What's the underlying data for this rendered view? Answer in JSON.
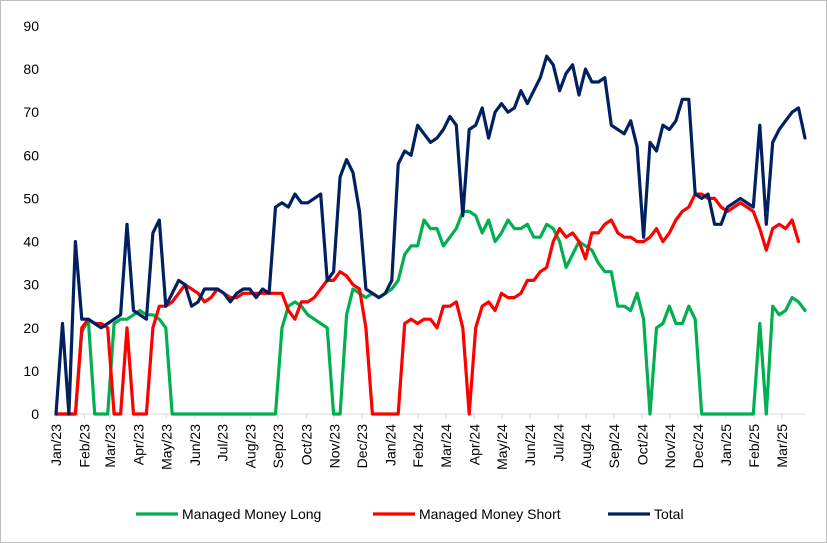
{
  "chart_data": {
    "type": "line",
    "title": "",
    "xlabel": "",
    "ylabel": "",
    "ylim": [
      0,
      90
    ],
    "yticks": [
      0,
      10,
      20,
      30,
      40,
      50,
      60,
      70,
      80,
      90
    ],
    "grid": false,
    "legend_position": "bottom",
    "x_tick_labels": [
      "Jan/23",
      "Feb/23",
      "Mar/23",
      "Apr/23",
      "May/23",
      "Jun/23",
      "Jul/23",
      "Aug/23",
      "Sep/23",
      "Oct/23",
      "Nov/23",
      "Dec/23",
      "Jan/24",
      "Feb/24",
      "Mar/24",
      "Apr/24",
      "May/24",
      "Jun/24",
      "Jul/24",
      "Aug/24",
      "Sep/24",
      "Oct/24",
      "Nov/24",
      "Dec/24",
      "Jan/25",
      "Feb/25",
      "Mar/25"
    ],
    "x_tick_index": [
      0,
      4.4,
      8.4,
      12.8,
      17.1,
      21.5,
      25.8,
      30.1,
      34.4,
      38.8,
      43.1,
      47.4,
      51.8,
      56.1,
      60.4,
      64.8,
      69.1,
      73.4,
      77.8,
      82.1,
      86.4,
      90.8,
      95.1,
      99.4,
      103.8,
      108.1,
      112.4
    ],
    "n_points": 117,
    "series": [
      {
        "name": "Managed Money Long",
        "color": "#00b050",
        "points": [
          [
            0,
            0
          ],
          [
            3,
            0
          ],
          [
            4,
            19
          ],
          [
            5,
            22
          ],
          [
            6,
            0
          ],
          [
            8,
            0
          ],
          [
            9,
            21
          ],
          [
            10,
            22
          ],
          [
            11,
            22
          ],
          [
            12,
            23
          ],
          [
            13,
            24
          ],
          [
            14,
            23
          ],
          [
            15,
            23
          ],
          [
            16,
            22
          ],
          [
            17,
            20
          ],
          [
            18,
            0
          ],
          [
            25,
            0
          ],
          [
            34,
            0
          ],
          [
            35,
            20
          ],
          [
            36,
            25
          ],
          [
            37,
            26
          ],
          [
            38,
            25
          ],
          [
            39,
            23
          ],
          [
            40,
            22
          ],
          [
            41,
            21
          ],
          [
            42,
            20
          ],
          [
            43,
            0
          ],
          [
            44,
            0
          ],
          [
            45,
            23
          ],
          [
            46,
            29
          ],
          [
            47,
            28
          ],
          [
            48,
            27
          ],
          [
            49,
            28
          ],
          [
            50,
            27
          ],
          [
            51,
            28
          ],
          [
            52,
            29
          ],
          [
            53,
            31
          ],
          [
            54,
            37
          ],
          [
            55,
            39
          ],
          [
            56,
            39
          ],
          [
            57,
            45
          ],
          [
            58,
            43
          ],
          [
            59,
            43
          ],
          [
            60,
            39
          ],
          [
            61,
            41
          ],
          [
            62,
            43
          ],
          [
            63,
            47
          ],
          [
            64,
            47
          ],
          [
            65,
            46
          ],
          [
            66,
            42
          ],
          [
            67,
            45
          ],
          [
            68,
            40
          ],
          [
            69,
            42
          ],
          [
            70,
            45
          ],
          [
            71,
            43
          ],
          [
            72,
            43
          ],
          [
            73,
            44
          ],
          [
            74,
            41
          ],
          [
            75,
            41
          ],
          [
            76,
            44
          ],
          [
            77,
            43
          ],
          [
            78,
            40
          ],
          [
            79,
            34
          ],
          [
            80,
            37
          ],
          [
            81,
            40
          ],
          [
            82,
            39
          ],
          [
            83,
            38
          ],
          [
            84,
            35
          ],
          [
            85,
            33
          ],
          [
            86,
            33
          ],
          [
            87,
            25
          ],
          [
            88,
            25
          ],
          [
            89,
            24
          ],
          [
            90,
            28
          ],
          [
            91,
            22
          ],
          [
            92,
            0
          ],
          [
            93,
            20
          ],
          [
            94,
            21
          ],
          [
            95,
            25
          ],
          [
            96,
            21
          ],
          [
            97,
            21
          ],
          [
            98,
            25
          ],
          [
            99,
            22
          ],
          [
            100,
            0
          ],
          [
            107,
            0
          ],
          [
            108,
            0
          ],
          [
            109,
            21
          ],
          [
            110,
            0
          ],
          [
            111,
            25
          ],
          [
            112,
            23
          ],
          [
            113,
            24
          ],
          [
            114,
            27
          ],
          [
            115,
            26
          ],
          [
            116,
            24
          ]
        ]
      },
      {
        "name": "Managed Money Short",
        "color": "#ff0000",
        "points": [
          [
            0,
            0
          ],
          [
            3,
            0
          ],
          [
            4,
            20
          ],
          [
            5,
            22
          ],
          [
            6,
            21
          ],
          [
            7,
            21
          ],
          [
            8,
            20
          ],
          [
            9,
            0
          ],
          [
            10,
            0
          ],
          [
            11,
            20
          ],
          [
            12,
            0
          ],
          [
            13,
            0
          ],
          [
            14,
            0
          ],
          [
            15,
            20
          ],
          [
            16,
            25
          ],
          [
            17,
            25
          ],
          [
            18,
            26
          ],
          [
            19,
            28
          ],
          [
            20,
            30
          ],
          [
            21,
            29
          ],
          [
            22,
            28
          ],
          [
            23,
            26
          ],
          [
            24,
            27
          ],
          [
            25,
            29
          ],
          [
            26,
            28
          ],
          [
            27,
            27
          ],
          [
            28,
            27
          ],
          [
            29,
            28
          ],
          [
            30,
            28
          ],
          [
            31,
            28
          ],
          [
            32,
            28
          ],
          [
            33,
            28
          ],
          [
            34,
            28
          ],
          [
            35,
            28
          ],
          [
            36,
            24
          ],
          [
            37,
            22
          ],
          [
            38,
            26
          ],
          [
            39,
            26
          ],
          [
            40,
            27
          ],
          [
            41,
            29
          ],
          [
            42,
            31
          ],
          [
            43,
            31
          ],
          [
            44,
            33
          ],
          [
            45,
            32
          ],
          [
            46,
            30
          ],
          [
            47,
            29
          ],
          [
            48,
            20
          ],
          [
            49,
            0
          ],
          [
            50,
            0
          ],
          [
            51,
            0
          ],
          [
            52,
            0
          ],
          [
            53,
            0
          ],
          [
            54,
            21
          ],
          [
            55,
            22
          ],
          [
            56,
            21
          ],
          [
            57,
            22
          ],
          [
            58,
            22
          ],
          [
            59,
            20
          ],
          [
            60,
            25
          ],
          [
            61,
            25
          ],
          [
            62,
            26
          ],
          [
            63,
            20
          ],
          [
            64,
            0
          ],
          [
            65,
            20
          ],
          [
            66,
            25
          ],
          [
            67,
            26
          ],
          [
            68,
            24
          ],
          [
            69,
            28
          ],
          [
            70,
            27
          ],
          [
            71,
            27
          ],
          [
            72,
            28
          ],
          [
            73,
            31
          ],
          [
            74,
            31
          ],
          [
            75,
            33
          ],
          [
            76,
            34
          ],
          [
            77,
            40
          ],
          [
            78,
            43
          ],
          [
            79,
            41
          ],
          [
            80,
            42
          ],
          [
            81,
            40
          ],
          [
            82,
            36
          ],
          [
            83,
            42
          ],
          [
            84,
            42
          ],
          [
            85,
            44
          ],
          [
            86,
            45
          ],
          [
            87,
            42
          ],
          [
            88,
            41
          ],
          [
            89,
            41
          ],
          [
            90,
            40
          ],
          [
            91,
            40
          ],
          [
            92,
            41
          ],
          [
            93,
            43
          ],
          [
            94,
            40
          ],
          [
            95,
            42
          ],
          [
            96,
            45
          ],
          [
            97,
            47
          ],
          [
            98,
            48
          ],
          [
            99,
            51
          ],
          [
            100,
            51
          ],
          [
            101,
            50
          ],
          [
            102,
            50
          ],
          [
            103,
            48
          ],
          [
            104,
            47
          ],
          [
            105,
            48
          ],
          [
            106,
            49
          ],
          [
            107,
            48
          ],
          [
            108,
            47
          ],
          [
            109,
            43
          ],
          [
            110,
            38
          ],
          [
            111,
            43
          ],
          [
            112,
            44
          ],
          [
            113,
            43
          ],
          [
            114,
            45
          ],
          [
            115,
            40
          ]
        ]
      },
      {
        "name": "Total",
        "color": "#002060",
        "points": [
          [
            0,
            0
          ],
          [
            1,
            21
          ],
          [
            2,
            0
          ],
          [
            3,
            40
          ],
          [
            4,
            22
          ],
          [
            5,
            22
          ],
          [
            6,
            21
          ],
          [
            7,
            20
          ],
          [
            8,
            21
          ],
          [
            9,
            22
          ],
          [
            10,
            23
          ],
          [
            11,
            44
          ],
          [
            12,
            24
          ],
          [
            13,
            23
          ],
          [
            14,
            22
          ],
          [
            15,
            42
          ],
          [
            16,
            45
          ],
          [
            17,
            25
          ],
          [
            18,
            28
          ],
          [
            19,
            31
          ],
          [
            20,
            30
          ],
          [
            21,
            25
          ],
          [
            22,
            26
          ],
          [
            23,
            29
          ],
          [
            24,
            29
          ],
          [
            25,
            29
          ],
          [
            26,
            28
          ],
          [
            27,
            26
          ],
          [
            28,
            28
          ],
          [
            29,
            29
          ],
          [
            30,
            29
          ],
          [
            31,
            27
          ],
          [
            32,
            29
          ],
          [
            33,
            28
          ],
          [
            34,
            48
          ],
          [
            35,
            49
          ],
          [
            36,
            48
          ],
          [
            37,
            51
          ],
          [
            38,
            49
          ],
          [
            39,
            49
          ],
          [
            40,
            50
          ],
          [
            41,
            51
          ],
          [
            42,
            31
          ],
          [
            43,
            33
          ],
          [
            44,
            55
          ],
          [
            45,
            59
          ],
          [
            46,
            56
          ],
          [
            47,
            47
          ],
          [
            48,
            29
          ],
          [
            49,
            28
          ],
          [
            50,
            27
          ],
          [
            51,
            28
          ],
          [
            52,
            31
          ],
          [
            53,
            58
          ],
          [
            54,
            61
          ],
          [
            55,
            60
          ],
          [
            56,
            67
          ],
          [
            57,
            65
          ],
          [
            58,
            63
          ],
          [
            59,
            64
          ],
          [
            60,
            66
          ],
          [
            61,
            69
          ],
          [
            62,
            67
          ],
          [
            63,
            46
          ],
          [
            64,
            66
          ],
          [
            65,
            67
          ],
          [
            66,
            71
          ],
          [
            67,
            64
          ],
          [
            68,
            70
          ],
          [
            69,
            72
          ],
          [
            70,
            70
          ],
          [
            71,
            71
          ],
          [
            72,
            75
          ],
          [
            73,
            72
          ],
          [
            74,
            75
          ],
          [
            75,
            78
          ],
          [
            76,
            83
          ],
          [
            77,
            81
          ],
          [
            78,
            75
          ],
          [
            79,
            79
          ],
          [
            80,
            81
          ],
          [
            81,
            74
          ],
          [
            82,
            80
          ],
          [
            83,
            77
          ],
          [
            84,
            77
          ],
          [
            85,
            78
          ],
          [
            86,
            67
          ],
          [
            87,
            66
          ],
          [
            88,
            65
          ],
          [
            89,
            68
          ],
          [
            90,
            62
          ],
          [
            91,
            41
          ],
          [
            92,
            63
          ],
          [
            93,
            61
          ],
          [
            94,
            67
          ],
          [
            95,
            66
          ],
          [
            96,
            68
          ],
          [
            97,
            73
          ],
          [
            98,
            73
          ],
          [
            99,
            51
          ],
          [
            100,
            50
          ],
          [
            101,
            51
          ],
          [
            102,
            44
          ],
          [
            103,
            44
          ],
          [
            104,
            48
          ],
          [
            105,
            49
          ],
          [
            106,
            50
          ],
          [
            107,
            49
          ],
          [
            108,
            48
          ],
          [
            109,
            67
          ],
          [
            110,
            44
          ],
          [
            111,
            63
          ],
          [
            112,
            66
          ],
          [
            113,
            68
          ],
          [
            114,
            70
          ],
          [
            115,
            71
          ],
          [
            116,
            64
          ]
        ]
      }
    ]
  }
}
